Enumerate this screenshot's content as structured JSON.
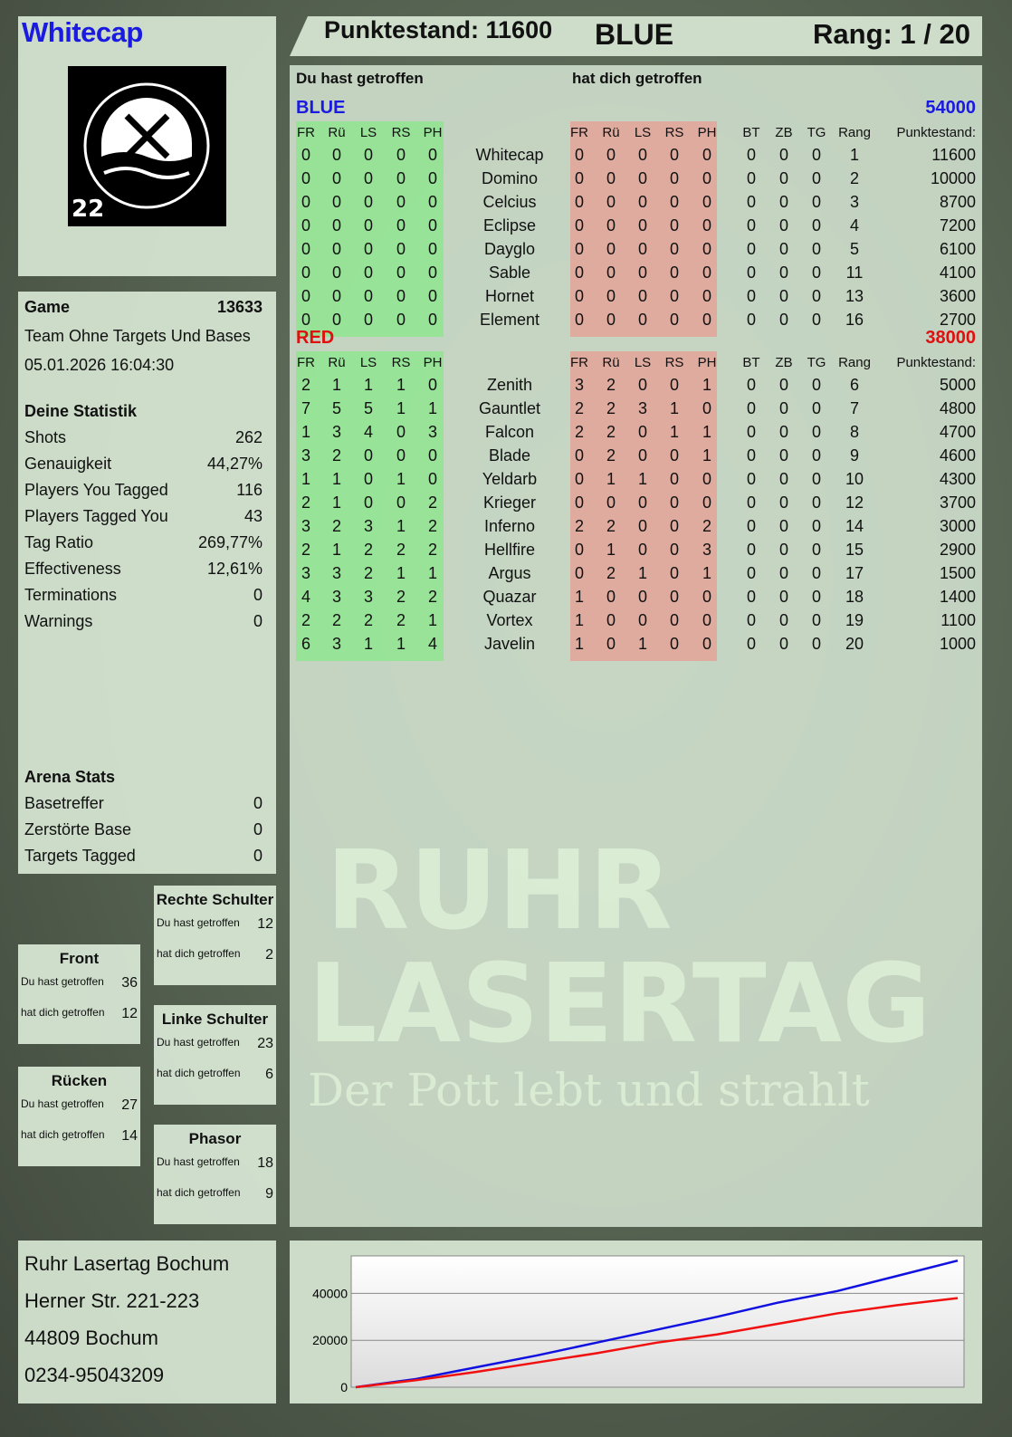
{
  "player": {
    "name": "Whitecap",
    "logo_text": "RUHR LASERTAG",
    "logo_number": "22"
  },
  "header": {
    "score_label": "Punktestand: 11600",
    "team": "BLUE",
    "rank_label": "Rang: 1 / 20"
  },
  "table": {
    "you_hit_label": "Du hast getroffen",
    "hit_you_label": "hat dich getroffen",
    "columns_left": [
      "FR",
      "Rü",
      "LS",
      "RS",
      "PH"
    ],
    "columns_right": [
      "FR",
      "Rü",
      "LS",
      "RS",
      "PH"
    ],
    "columns_extra": [
      "BT",
      "ZB",
      "TG",
      "Rang",
      "Punktestand:"
    ],
    "teams": [
      {
        "name": "BLUE",
        "score": "54000",
        "color": "#1a1ae0",
        "players": [
          [
            "0",
            "0",
            "0",
            "0",
            "0",
            "Whitecap",
            "0",
            "0",
            "0",
            "0",
            "0",
            "0",
            "0",
            "0",
            "1",
            "11600"
          ],
          [
            "0",
            "0",
            "0",
            "0",
            "0",
            "Domino",
            "0",
            "0",
            "0",
            "0",
            "0",
            "0",
            "0",
            "0",
            "2",
            "10000"
          ],
          [
            "0",
            "0",
            "0",
            "0",
            "0",
            "Celcius",
            "0",
            "0",
            "0",
            "0",
            "0",
            "0",
            "0",
            "0",
            "3",
            "8700"
          ],
          [
            "0",
            "0",
            "0",
            "0",
            "0",
            "Eclipse",
            "0",
            "0",
            "0",
            "0",
            "0",
            "0",
            "0",
            "0",
            "4",
            "7200"
          ],
          [
            "0",
            "0",
            "0",
            "0",
            "0",
            "Dayglo",
            "0",
            "0",
            "0",
            "0",
            "0",
            "0",
            "0",
            "0",
            "5",
            "6100"
          ],
          [
            "0",
            "0",
            "0",
            "0",
            "0",
            "Sable",
            "0",
            "0",
            "0",
            "0",
            "0",
            "0",
            "0",
            "0",
            "11",
            "4100"
          ],
          [
            "0",
            "0",
            "0",
            "0",
            "0",
            "Hornet",
            "0",
            "0",
            "0",
            "0",
            "0",
            "0",
            "0",
            "0",
            "13",
            "3600"
          ],
          [
            "0",
            "0",
            "0",
            "0",
            "0",
            "Element",
            "0",
            "0",
            "0",
            "0",
            "0",
            "0",
            "0",
            "0",
            "16",
            "2700"
          ]
        ]
      },
      {
        "name": "RED",
        "score": "38000",
        "color": "#e01010",
        "players": [
          [
            "2",
            "1",
            "1",
            "1",
            "0",
            "Zenith",
            "3",
            "2",
            "0",
            "0",
            "1",
            "0",
            "0",
            "0",
            "6",
            "5000"
          ],
          [
            "7",
            "5",
            "5",
            "1",
            "1",
            "Gauntlet",
            "2",
            "2",
            "3",
            "1",
            "0",
            "0",
            "0",
            "0",
            "7",
            "4800"
          ],
          [
            "1",
            "3",
            "4",
            "0",
            "3",
            "Falcon",
            "2",
            "2",
            "0",
            "1",
            "1",
            "0",
            "0",
            "0",
            "8",
            "4700"
          ],
          [
            "3",
            "2",
            "0",
            "0",
            "0",
            "Blade",
            "0",
            "2",
            "0",
            "0",
            "1",
            "0",
            "0",
            "0",
            "9",
            "4600"
          ],
          [
            "1",
            "1",
            "0",
            "1",
            "0",
            "Yeldarb",
            "0",
            "1",
            "1",
            "0",
            "0",
            "0",
            "0",
            "0",
            "10",
            "4300"
          ],
          [
            "2",
            "1",
            "0",
            "0",
            "2",
            "Krieger",
            "0",
            "0",
            "0",
            "0",
            "0",
            "0",
            "0",
            "0",
            "12",
            "3700"
          ],
          [
            "3",
            "2",
            "3",
            "1",
            "2",
            "Inferno",
            "2",
            "2",
            "0",
            "0",
            "2",
            "0",
            "0",
            "0",
            "14",
            "3000"
          ],
          [
            "2",
            "1",
            "2",
            "2",
            "2",
            "Hellfire",
            "0",
            "1",
            "0",
            "0",
            "3",
            "0",
            "0",
            "0",
            "15",
            "2900"
          ],
          [
            "3",
            "3",
            "2",
            "1",
            "1",
            "Argus",
            "0",
            "2",
            "1",
            "0",
            "1",
            "0",
            "0",
            "0",
            "17",
            "1500"
          ],
          [
            "4",
            "3",
            "3",
            "2",
            "2",
            "Quazar",
            "1",
            "0",
            "0",
            "0",
            "0",
            "0",
            "0",
            "0",
            "18",
            "1400"
          ],
          [
            "2",
            "2",
            "2",
            "2",
            "1",
            "Vortex",
            "1",
            "0",
            "0",
            "0",
            "0",
            "0",
            "0",
            "0",
            "19",
            "1100"
          ],
          [
            "6",
            "3",
            "1",
            "1",
            "4",
            "Javelin",
            "1",
            "0",
            "1",
            "0",
            "0",
            "0",
            "0",
            "0",
            "20",
            "1000"
          ]
        ]
      }
    ]
  },
  "game": {
    "label": "Game",
    "number": "13633",
    "mode": "Team Ohne Targets Und Bases",
    "datetime": "05.01.2026 16:04:30"
  },
  "stats": {
    "title": "Deine Statistik",
    "items": [
      {
        "label": "Shots",
        "value": "262"
      },
      {
        "label": "Genauigkeit",
        "value": "44,27%"
      },
      {
        "label": "Players You Tagged",
        "value": "116"
      },
      {
        "label": "Players Tagged You",
        "value": "43"
      },
      {
        "label": "Tag Ratio",
        "value": "269,77%"
      },
      {
        "label": "Effectiveness",
        "value": "12,61%"
      },
      {
        "label": "Terminations",
        "value": "0"
      },
      {
        "label": "Warnings",
        "value": "0"
      }
    ]
  },
  "arena": {
    "title": "Arena Stats",
    "items": [
      {
        "label": "Basetreffer",
        "value": "0"
      },
      {
        "label": "Zerstörte Base",
        "value": "0"
      },
      {
        "label": "Targets Tagged",
        "value": "0"
      }
    ]
  },
  "zones": [
    {
      "name": "Rechte Schulter",
      "you_hit_label": "Du hast getroffen",
      "you_hit": "12",
      "hit_you_label": "hat dich getroffen",
      "hit_you": "2"
    },
    {
      "name": "Front",
      "you_hit_label": "Du hast getroffen",
      "you_hit": "36",
      "hit_you_label": "hat dich getroffen",
      "hit_you": "12"
    },
    {
      "name": "Linke Schulter",
      "you_hit_label": "Du hast getroffen",
      "you_hit": "23",
      "hit_you_label": "hat dich getroffen",
      "hit_you": "6"
    },
    {
      "name": "Rücken",
      "you_hit_label": "Du hast getroffen",
      "you_hit": "27",
      "hit_you_label": "hat dich getroffen",
      "hit_you": "14"
    },
    {
      "name": "Phasor",
      "you_hit_label": "Du hast getroffen",
      "you_hit": "18",
      "hit_you_label": "hat dich getroffen",
      "hit_you": "9"
    }
  ],
  "address": {
    "lines": [
      "Ruhr Lasertag Bochum",
      "Herner Str. 221-223",
      "44809 Bochum",
      "0234-95043209"
    ]
  },
  "watermark": {
    "line1": "RUHR",
    "line2": "LASERTAG",
    "slogan": "Der Pott lebt und strahlt"
  },
  "chart_data": {
    "type": "line",
    "ylim": [
      0,
      56000
    ],
    "yticks": [
      "0",
      "20000",
      "40000"
    ],
    "grid": true,
    "x": [
      0,
      1,
      2,
      3,
      4,
      5,
      6,
      7,
      8,
      9,
      10
    ],
    "series": [
      {
        "color": "#1010e0",
        "values": [
          0,
          3500,
          8500,
          13500,
          19000,
          24500,
          30000,
          36000,
          41000,
          47500,
          54000
        ]
      },
      {
        "color": "#f01010",
        "values": [
          0,
          3000,
          6500,
          10500,
          14500,
          19000,
          22500,
          27000,
          31500,
          35000,
          38000
        ]
      }
    ]
  }
}
